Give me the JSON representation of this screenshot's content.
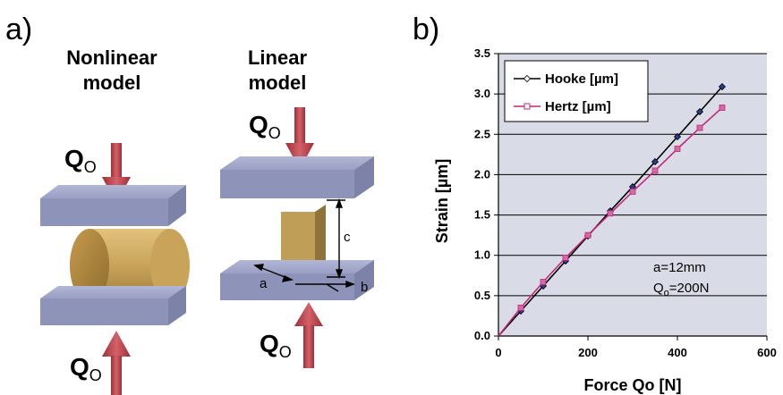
{
  "panel_a": {
    "label": "a)",
    "nonlinear": {
      "title_line1": "Nonlinear",
      "title_line2": "model"
    },
    "linear": {
      "title_line1": "Linear",
      "title_line2": "model"
    },
    "force": {
      "symbol": "Q",
      "subscript": "O"
    },
    "dimensions": {
      "a": "a",
      "b": "b",
      "c": "c"
    }
  },
  "panel_b": {
    "label": "b)",
    "annotation": {
      "line1": "a=12mm",
      "line2_symbol": "Q",
      "line2_sub": "o",
      "line2_rest": "=200N"
    }
  },
  "colors": {
    "plate": "#9ea3c6",
    "plate_side": "#7d83aa",
    "cylinder": "#c7a55e",
    "block": "#bf9f57",
    "arrow": "#c0474f",
    "plot_bg": "#d9dce6",
    "hooke": "#000000",
    "hooke_marker": "#2b3a8c",
    "hertz": "#c4267a",
    "hertz_marker": "#d36aa6"
  },
  "chart_data": {
    "type": "line",
    "title": "",
    "xlabel": "Force Qo [N]",
    "ylabel": "Strain [µm]",
    "xlim": [
      0,
      600
    ],
    "ylim": [
      0,
      3.5
    ],
    "x_ticks": [
      "0",
      "200",
      "400",
      "600"
    ],
    "y_ticks": [
      "0.0",
      "0.5",
      "1.0",
      "1.5",
      "2.0",
      "2.5",
      "3.0",
      "3.5"
    ],
    "grid": "horizontal",
    "legend_position": "top-left",
    "series": [
      {
        "name": "Hooke [µm]",
        "marker": "diamond",
        "x": [
          0,
          50,
          100,
          150,
          200,
          250,
          300,
          350,
          400,
          450,
          500
        ],
        "y": [
          0,
          0.31,
          0.62,
          0.93,
          1.24,
          1.55,
          1.85,
          2.16,
          2.47,
          2.78,
          3.09
        ]
      },
      {
        "name": "Hertz [µm]",
        "marker": "square",
        "x": [
          0,
          50,
          100,
          150,
          200,
          250,
          300,
          350,
          400,
          450,
          500
        ],
        "y": [
          0,
          0.35,
          0.67,
          0.97,
          1.25,
          1.52,
          1.79,
          2.05,
          2.32,
          2.58,
          2.83
        ]
      }
    ]
  }
}
